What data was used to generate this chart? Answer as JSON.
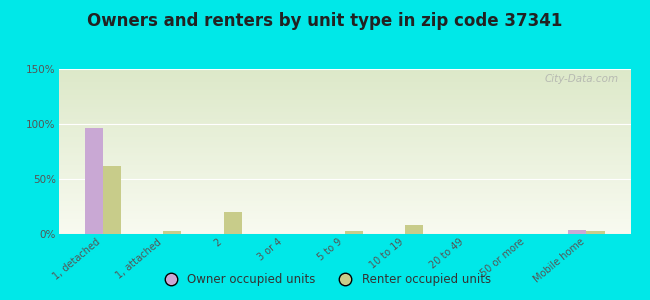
{
  "title": "Owners and renters by unit type in zip code 37341",
  "categories": [
    "1, detached",
    "1, attached",
    "2",
    "3 or 4",
    "5 to 9",
    "10 to 19",
    "20 to 49",
    "50 or more",
    "Mobile home"
  ],
  "owner_values": [
    96,
    0,
    0,
    0,
    0,
    0,
    0,
    0,
    4
  ],
  "renter_values": [
    62,
    3,
    20,
    0,
    3,
    8,
    0,
    0,
    3
  ],
  "owner_color": "#c9a8d4",
  "renter_color": "#c8cc8a",
  "bg_color": "#00e8e8",
  "plot_bg_top": "#dce8c8",
  "plot_bg_bottom": "#f8faf0",
  "title_fontsize": 12,
  "ylabel_ticks": [
    0,
    50,
    100,
    150
  ],
  "ylabel_labels": [
    "0%",
    "50%",
    "100%",
    "150%"
  ],
  "ylim": [
    0,
    150
  ],
  "bar_width": 0.3,
  "watermark": "City-Data.com"
}
